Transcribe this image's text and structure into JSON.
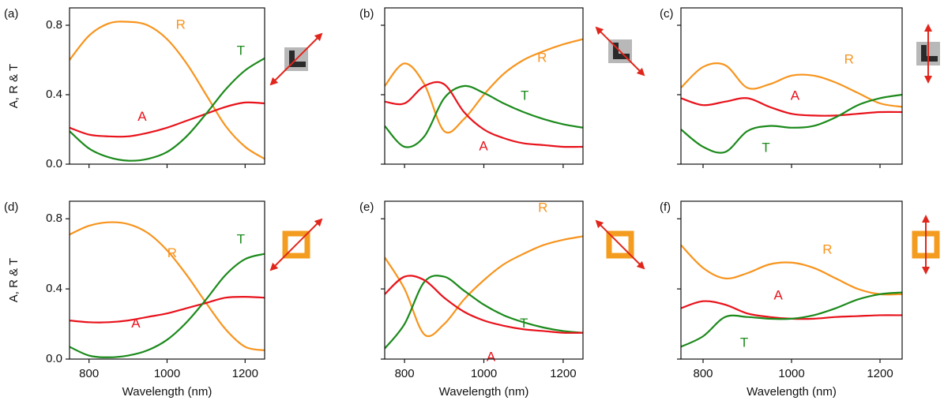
{
  "chart_data": [
    {
      "type": "line",
      "label": "(a)",
      "ylabel": "A, R & T",
      "x": [
        750,
        800,
        850,
        900,
        950,
        1000,
        1050,
        1100,
        1150,
        1200,
        1250
      ],
      "series": [
        {
          "name": "R",
          "color": "#f7941d",
          "values": [
            0.6,
            0.74,
            0.81,
            0.82,
            0.8,
            0.72,
            0.58,
            0.4,
            0.22,
            0.1,
            0.03
          ]
        },
        {
          "name": "A",
          "color": "#e8121b",
          "values": [
            0.21,
            0.17,
            0.16,
            0.16,
            0.18,
            0.21,
            0.25,
            0.29,
            0.33,
            0.355,
            0.35
          ]
        },
        {
          "name": "T",
          "color": "#1b8a1b",
          "values": [
            0.19,
            0.09,
            0.04,
            0.02,
            0.03,
            0.07,
            0.16,
            0.29,
            0.43,
            0.54,
            0.61
          ]
        }
      ],
      "xlim": [
        750,
        1250
      ],
      "ylim": [
        0,
        0.9
      ],
      "xticks": [
        800,
        1000,
        1200
      ],
      "yticks": [
        {
          "value": 0,
          "label": "0.0"
        },
        0.4,
        0.8
      ]
    },
    {
      "type": "line",
      "label": "(b)",
      "x": [
        750,
        800,
        850,
        900,
        950,
        1000,
        1050,
        1100,
        1150,
        1200,
        1250
      ],
      "series": [
        {
          "name": "R",
          "color": "#f7941d",
          "values": [
            0.45,
            0.58,
            0.46,
            0.19,
            0.26,
            0.4,
            0.52,
            0.6,
            0.65,
            0.69,
            0.72
          ]
        },
        {
          "name": "T",
          "color": "#1b8a1b",
          "values": [
            0.22,
            0.1,
            0.16,
            0.38,
            0.45,
            0.41,
            0.35,
            0.3,
            0.26,
            0.23,
            0.21
          ]
        },
        {
          "name": "A",
          "color": "#e8121b",
          "values": [
            0.36,
            0.35,
            0.45,
            0.46,
            0.3,
            0.2,
            0.15,
            0.12,
            0.11,
            0.1,
            0.1
          ]
        }
      ],
      "xlim": [
        750,
        1250
      ],
      "ylim": [
        0,
        0.9
      ],
      "xticks": [
        800,
        1000,
        1200
      ],
      "yticks": [
        0,
        0.4,
        0.8
      ]
    },
    {
      "type": "line",
      "label": "(c)",
      "x": [
        750,
        800,
        850,
        900,
        950,
        1000,
        1050,
        1100,
        1150,
        1200,
        1250
      ],
      "series": [
        {
          "name": "R",
          "color": "#f7941d",
          "values": [
            0.44,
            0.56,
            0.57,
            0.44,
            0.46,
            0.51,
            0.51,
            0.47,
            0.41,
            0.35,
            0.33
          ]
        },
        {
          "name": "A",
          "color": "#e8121b",
          "values": [
            0.38,
            0.34,
            0.36,
            0.38,
            0.33,
            0.29,
            0.28,
            0.28,
            0.29,
            0.3,
            0.3
          ]
        },
        {
          "name": "T",
          "color": "#1b8a1b",
          "values": [
            0.2,
            0.1,
            0.07,
            0.19,
            0.22,
            0.21,
            0.22,
            0.27,
            0.34,
            0.38,
            0.4
          ]
        }
      ],
      "xlim": [
        750,
        1250
      ],
      "ylim": [
        0,
        0.9
      ],
      "xticks": [
        800,
        1000,
        1200
      ],
      "yticks": [
        0,
        0.4,
        0.8
      ]
    },
    {
      "type": "line",
      "label": "(d)",
      "ylabel": "A, R & T",
      "xlabel": "Wavelength (nm)",
      "x": [
        750,
        800,
        850,
        900,
        950,
        1000,
        1050,
        1100,
        1150,
        1200,
        1250
      ],
      "series": [
        {
          "name": "R",
          "color": "#f7941d",
          "values": [
            0.71,
            0.76,
            0.78,
            0.77,
            0.72,
            0.62,
            0.48,
            0.32,
            0.17,
            0.07,
            0.05
          ]
        },
        {
          "name": "A",
          "color": "#e8121b",
          "values": [
            0.22,
            0.21,
            0.21,
            0.22,
            0.24,
            0.26,
            0.29,
            0.32,
            0.35,
            0.355,
            0.35
          ]
        },
        {
          "name": "T",
          "color": "#1b8a1b",
          "values": [
            0.07,
            0.02,
            0.01,
            0.02,
            0.05,
            0.11,
            0.21,
            0.34,
            0.48,
            0.57,
            0.6
          ]
        }
      ],
      "xlim": [
        750,
        1250
      ],
      "ylim": [
        0,
        0.9
      ],
      "xticks": [
        800,
        1000,
        1200
      ],
      "yticks": [
        {
          "value": 0,
          "label": "0.0"
        },
        0.4,
        0.8
      ]
    },
    {
      "type": "line",
      "label": "(e)",
      "xlabel": "Wavelength (nm)",
      "x": [
        750,
        800,
        850,
        900,
        950,
        1000,
        1050,
        1100,
        1150,
        1200,
        1250
      ],
      "series": [
        {
          "name": "R",
          "color": "#f7941d",
          "values": [
            0.58,
            0.4,
            0.14,
            0.2,
            0.34,
            0.45,
            0.54,
            0.6,
            0.65,
            0.68,
            0.7
          ]
        },
        {
          "name": "T",
          "color": "#1b8a1b",
          "values": [
            0.06,
            0.2,
            0.44,
            0.47,
            0.39,
            0.31,
            0.25,
            0.21,
            0.18,
            0.16,
            0.15
          ]
        },
        {
          "name": "A",
          "color": "#e8121b",
          "values": [
            0.37,
            0.47,
            0.45,
            0.35,
            0.27,
            0.22,
            0.19,
            0.17,
            0.16,
            0.15,
            0.15
          ]
        }
      ],
      "xlim": [
        750,
        1250
      ],
      "ylim": [
        0,
        0.9
      ],
      "xticks": [
        800,
        1000,
        1200
      ],
      "yticks": [
        0,
        0.4,
        0.8
      ]
    },
    {
      "type": "line",
      "label": "(f)",
      "xlabel": "Wavelength (nm)",
      "x": [
        750,
        800,
        850,
        900,
        950,
        1000,
        1050,
        1100,
        1150,
        1200,
        1250
      ],
      "series": [
        {
          "name": "R",
          "color": "#f7941d",
          "values": [
            0.65,
            0.52,
            0.46,
            0.49,
            0.54,
            0.55,
            0.52,
            0.46,
            0.4,
            0.37,
            0.37
          ]
        },
        {
          "name": "A",
          "color": "#e8121b",
          "values": [
            0.29,
            0.33,
            0.31,
            0.26,
            0.24,
            0.23,
            0.23,
            0.24,
            0.245,
            0.25,
            0.25
          ]
        },
        {
          "name": "T",
          "color": "#1b8a1b",
          "values": [
            0.07,
            0.13,
            0.24,
            0.24,
            0.23,
            0.23,
            0.25,
            0.29,
            0.34,
            0.37,
            0.38
          ]
        }
      ],
      "xlim": [
        750,
        1250
      ],
      "ylim": [
        0,
        0.9
      ],
      "xticks": [
        800,
        1000,
        1200
      ],
      "yticks": [
        0,
        0.4,
        0.8
      ]
    }
  ]
}
